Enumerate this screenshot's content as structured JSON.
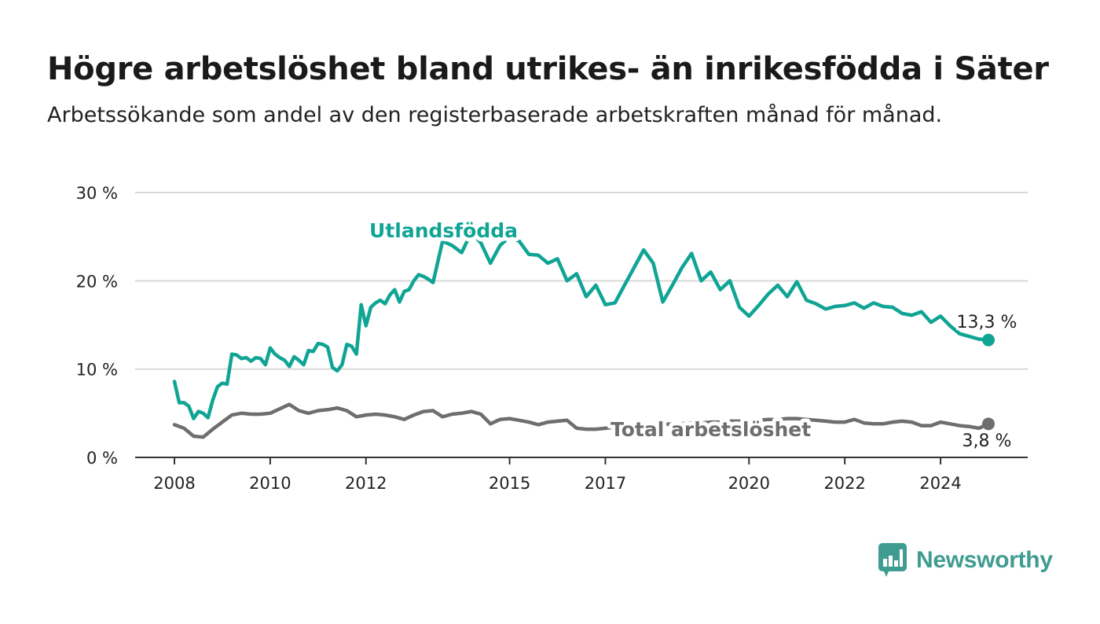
{
  "title": "Högre arbetslöshet bland utrikes- än inrikesfödda i Säter",
  "subtitle": "Arbetssökande som andel av den registerbaserade arbetskraften månad för månad.",
  "brand": {
    "name": "Newsworthy",
    "color": "#3f9c90"
  },
  "chart_data": {
    "type": "line",
    "title": "Högre arbetslöshet bland utrikes- än inrikesfödda i Säter",
    "subtitle": "Arbetssökande som andel av den registerbaserade arbetskraften månad för månad.",
    "ylim": [
      0,
      30
    ],
    "xlim": [
      2008.0,
      2025.0
    ],
    "y_ticks": [
      0,
      10,
      20,
      30
    ],
    "y_tick_labels": [
      "0 %",
      "10 %",
      "20 %",
      "30 %"
    ],
    "x_ticks": [
      2008,
      2010,
      2012,
      2015,
      2017,
      2020,
      2022,
      2024
    ],
    "x_tick_labels": [
      "2008",
      "2010",
      "2012",
      "2015",
      "2017",
      "2020",
      "2022",
      "2024"
    ],
    "grid": "horizontal",
    "series": [
      {
        "name": "Utlandsfödda",
        "color": "#10a495",
        "end_label": "13,3 %",
        "x": [
          2008.0,
          2008.1,
          2008.2,
          2008.3,
          2008.4,
          2008.5,
          2008.6,
          2008.7,
          2008.8,
          2008.9,
          2009.0,
          2009.1,
          2009.2,
          2009.3,
          2009.4,
          2009.5,
          2009.6,
          2009.7,
          2009.8,
          2009.9,
          2010.0,
          2010.1,
          2010.2,
          2010.3,
          2010.4,
          2010.5,
          2010.6,
          2010.7,
          2010.8,
          2010.9,
          2011.0,
          2011.1,
          2011.2,
          2011.3,
          2011.4,
          2011.5,
          2011.6,
          2011.7,
          2011.8,
          2011.9,
          2012.0,
          2012.1,
          2012.2,
          2012.3,
          2012.4,
          2012.5,
          2012.6,
          2012.7,
          2012.8,
          2012.9,
          2013.0,
          2013.1,
          2013.2,
          2013.3,
          2013.4,
          2013.6,
          2013.8,
          2014.0,
          2014.2,
          2014.4,
          2014.6,
          2014.8,
          2015.0,
          2015.2,
          2015.4,
          2015.6,
          2015.8,
          2016.0,
          2016.2,
          2016.4,
          2016.6,
          2016.8,
          2017.0,
          2017.2,
          2017.4,
          2017.6,
          2017.8,
          2018.0,
          2018.2,
          2018.4,
          2018.6,
          2018.8,
          2019.0,
          2019.2,
          2019.4,
          2019.6,
          2019.8,
          2020.0,
          2020.2,
          2020.4,
          2020.6,
          2020.8,
          2021.0,
          2021.2,
          2021.4,
          2021.6,
          2021.8,
          2022.0,
          2022.2,
          2022.4,
          2022.6,
          2022.8,
          2023.0,
          2023.2,
          2023.4,
          2023.6,
          2023.8,
          2024.0,
          2024.2,
          2024.4,
          2024.6,
          2024.8,
          2025.0
        ],
        "values": [
          8.6,
          6.2,
          6.2,
          5.8,
          4.4,
          5.2,
          5.0,
          4.5,
          6.5,
          8.0,
          8.4,
          8.3,
          11.7,
          11.6,
          11.2,
          11.3,
          10.9,
          11.3,
          11.2,
          10.5,
          12.4,
          11.7,
          11.3,
          11.0,
          10.3,
          11.4,
          11.0,
          10.5,
          12.1,
          12.0,
          12.9,
          12.8,
          12.5,
          10.2,
          9.8,
          10.5,
          12.8,
          12.6,
          11.7,
          17.3,
          14.9,
          17.0,
          17.5,
          17.8,
          17.4,
          18.4,
          19.0,
          17.6,
          18.8,
          19.0,
          20.0,
          20.7,
          20.5,
          20.2,
          19.8,
          24.5,
          24.0,
          23.2,
          25.5,
          24.3,
          22.0,
          24.0,
          25.0,
          24.5,
          23.0,
          22.9,
          22.0,
          22.5,
          20.0,
          20.8,
          18.2,
          19.5,
          17.3,
          17.5,
          19.5,
          21.5,
          23.5,
          22.0,
          17.6,
          19.5,
          21.5,
          23.1,
          20.0,
          21.0,
          19.0,
          20.0,
          17.0,
          16.0,
          17.2,
          18.5,
          19.5,
          18.2,
          19.9,
          17.8,
          17.4,
          16.8,
          17.1,
          17.2,
          17.5,
          16.9,
          17.5,
          17.1,
          17.0,
          16.3,
          16.1,
          16.5,
          15.3,
          16.0,
          14.9,
          14.0,
          13.7,
          13.4,
          13.3
        ]
      },
      {
        "name": "Total arbetslöshet",
        "color": "#6e6e6e",
        "end_label": "3,8 %",
        "x": [
          2008.0,
          2008.2,
          2008.4,
          2008.6,
          2008.8,
          2009.0,
          2009.2,
          2009.4,
          2009.6,
          2009.8,
          2010.0,
          2010.2,
          2010.4,
          2010.6,
          2010.8,
          2011.0,
          2011.2,
          2011.4,
          2011.6,
          2011.8,
          2012.0,
          2012.2,
          2012.4,
          2012.6,
          2012.8,
          2013.0,
          2013.2,
          2013.4,
          2013.6,
          2013.8,
          2014.0,
          2014.2,
          2014.4,
          2014.6,
          2014.8,
          2015.0,
          2015.2,
          2015.4,
          2015.6,
          2015.8,
          2016.0,
          2016.2,
          2016.4,
          2016.6,
          2016.8,
          2017.0,
          2017.2,
          2017.4,
          2017.6,
          2017.8,
          2018.0,
          2018.2,
          2018.4,
          2018.6,
          2018.8,
          2019.0,
          2019.2,
          2019.4,
          2019.6,
          2019.8,
          2020.0,
          2020.2,
          2020.4,
          2020.6,
          2020.8,
          2021.0,
          2021.2,
          2021.4,
          2021.6,
          2021.8,
          2022.0,
          2022.2,
          2022.4,
          2022.6,
          2022.8,
          2023.0,
          2023.2,
          2023.4,
          2023.6,
          2023.8,
          2024.0,
          2024.2,
          2024.4,
          2024.6,
          2024.8,
          2025.0
        ],
        "values": [
          3.7,
          3.3,
          2.4,
          2.3,
          3.2,
          4.0,
          4.8,
          5.0,
          4.9,
          4.9,
          5.0,
          5.5,
          6.0,
          5.3,
          5.0,
          5.3,
          5.4,
          5.6,
          5.3,
          4.6,
          4.8,
          4.9,
          4.8,
          4.6,
          4.3,
          4.8,
          5.2,
          5.3,
          4.6,
          4.9,
          5.0,
          5.2,
          4.9,
          3.8,
          4.3,
          4.4,
          4.2,
          4.0,
          3.7,
          4.0,
          4.1,
          4.2,
          3.3,
          3.2,
          3.2,
          3.3,
          3.4,
          3.5,
          3.6,
          3.6,
          3.7,
          3.7,
          3.8,
          3.8,
          3.9,
          3.9,
          4.0,
          4.0,
          4.1,
          4.1,
          4.2,
          4.2,
          4.3,
          4.3,
          4.4,
          4.4,
          4.3,
          4.2,
          4.1,
          4.0,
          4.0,
          4.3,
          3.9,
          3.8,
          3.8,
          4.0,
          4.1,
          4.0,
          3.6,
          3.6,
          4.0,
          3.8,
          3.6,
          3.5,
          3.3,
          3.8
        ]
      }
    ]
  }
}
